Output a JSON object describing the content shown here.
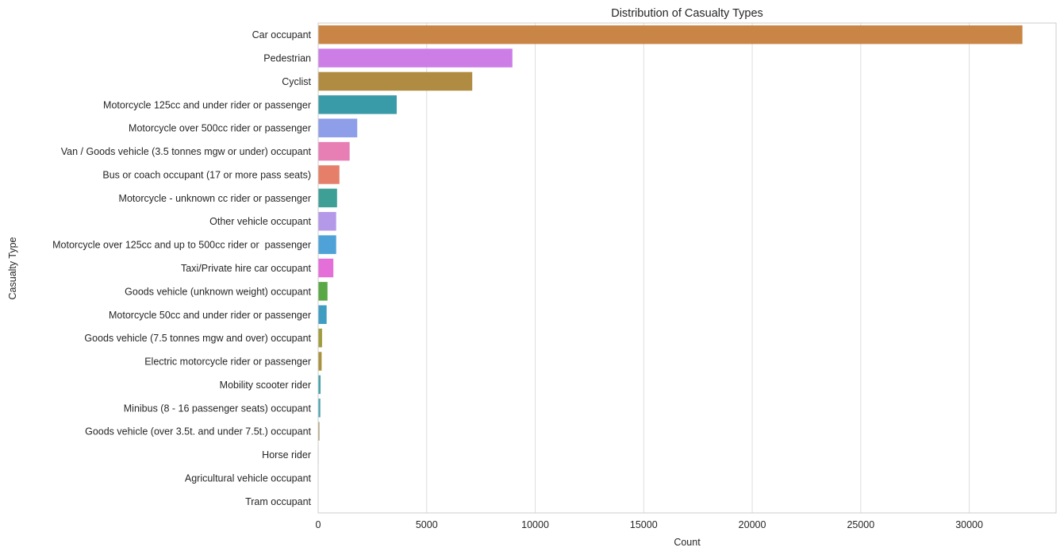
{
  "chart_data": {
    "type": "bar",
    "orientation": "horizontal",
    "title": "Distribution of Casualty Types",
    "xlabel": "Count",
    "ylabel": "Casualty Type",
    "xlim": [
      0,
      34000
    ],
    "xticks": [
      0,
      5000,
      10000,
      15000,
      20000,
      25000,
      30000
    ],
    "grid": "vertical",
    "categories": [
      "Car occupant",
      "Pedestrian",
      "Cyclist",
      "Motorcycle 125cc and under rider or passenger",
      "Motorcycle over 500cc rider or passenger",
      "Van / Goods vehicle (3.5 tonnes mgw or under) occupant",
      "Bus or coach occupant (17 or more pass seats)",
      "Motorcycle - unknown cc rider or passenger",
      "Other vehicle occupant",
      "Motorcycle over 125cc and up to 500cc rider or  passenger",
      "Taxi/Private hire car occupant",
      "Goods vehicle (unknown weight) occupant",
      "Motorcycle 50cc and under rider or passenger",
      "Goods vehicle (7.5 tonnes mgw and over) occupant",
      "Electric motorcycle rider or passenger",
      "Mobility scooter rider",
      "Minibus (8 - 16 passenger seats) occupant",
      "Goods vehicle (over 3.5t. and under 7.5t.) occupant",
      "Horse rider",
      "Agricultural vehicle occupant",
      "Tram occupant"
    ],
    "values": [
      32450,
      8950,
      7100,
      3620,
      1800,
      1450,
      980,
      870,
      830,
      830,
      700,
      430,
      390,
      180,
      160,
      110,
      100,
      60,
      20,
      15,
      5
    ],
    "colors": [
      "#c98545",
      "#cc7ee6",
      "#b08c42",
      "#3a9ba8",
      "#8e9ee8",
      "#e87fb4",
      "#e57f6a",
      "#3d9f96",
      "#b599e9",
      "#4ea2d8",
      "#e56fd8",
      "#58a846",
      "#3f9dc2",
      "#9f9c3e",
      "#a8933d",
      "#43a3a8",
      "#47a3b4",
      "#a89b6a",
      "#8a8a8a",
      "#8a8a8a",
      "#8a8a8a"
    ]
  }
}
